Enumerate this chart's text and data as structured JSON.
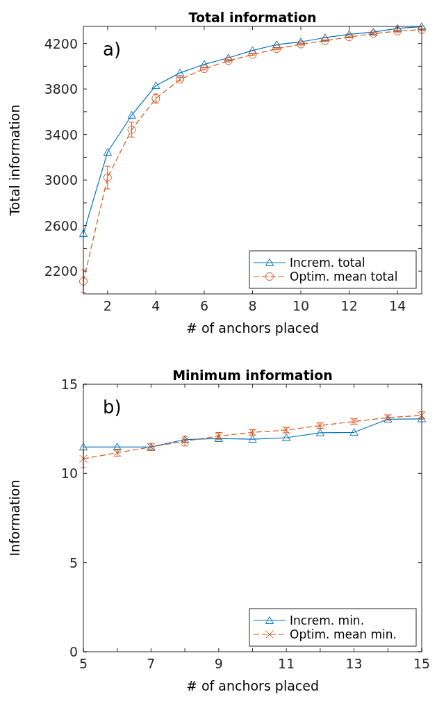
{
  "chart_data": [
    {
      "type": "line",
      "title": "Total information",
      "xlabel": "# of anchors placed",
      "ylabel": "Total information",
      "annotations": [
        "a)"
      ],
      "x": [
        1,
        2,
        3,
        4,
        5,
        6,
        7,
        8,
        9,
        10,
        11,
        12,
        13,
        14,
        15
      ],
      "xlim": [
        1,
        15
      ],
      "xticks": [
        2,
        4,
        6,
        8,
        10,
        12,
        14
      ],
      "ylim": [
        2000,
        4350
      ],
      "yticks": [
        2200,
        {
          "value": 2400,
          "label": null
        },
        2600,
        {
          "value": 2800,
          "label": null
        },
        3000,
        {
          "value": 3200,
          "label": null
        },
        3400,
        {
          "value": 3600,
          "label": null
        },
        3800,
        {
          "value": 4000,
          "label": null
        },
        4200
      ],
      "grid": false,
      "legend": "bottom right",
      "series": [
        {
          "name": "Increm. total",
          "color": "#0072bd",
          "marker": "triangle",
          "line_style": "solid",
          "values": [
            2530,
            3245,
            3570,
            3830,
            3942,
            4017,
            4074,
            4139,
            4190,
            4214,
            4251,
            4281,
            4300,
            4332,
            4348
          ]
        },
        {
          "name": "Optim. mean total",
          "color": "#d95319",
          "marker": "circle",
          "line_style": "dashed",
          "values": [
            2110,
            3022,
            3443,
            3717,
            3885,
            3977,
            4048,
            4102,
            4153,
            4194,
            4224,
            4257,
            4287,
            4308,
            4322
          ],
          "errors": [
            100,
            100,
            65,
            40,
            15,
            10,
            10,
            8,
            8,
            8,
            8,
            8,
            8,
            8,
            8
          ]
        }
      ]
    },
    {
      "type": "line",
      "title": "Minimum information",
      "xlabel": "# of anchors placed",
      "ylabel": "Information",
      "annotations": [
        "b)"
      ],
      "x": [
        5,
        6,
        7,
        8,
        9,
        10,
        11,
        12,
        13,
        14,
        15
      ],
      "xlim": [
        5,
        15
      ],
      "xticks": [
        5,
        {
          "value": 6,
          "label": null
        },
        7,
        {
          "value": 8,
          "label": null
        },
        9,
        {
          "value": 10,
          "label": null
        },
        11,
        {
          "value": 12,
          "label": null
        },
        13,
        {
          "value": 14,
          "label": null
        },
        15
      ],
      "ylim": [
        0,
        15
      ],
      "yticks": [
        0,
        5,
        10,
        15
      ],
      "grid": false,
      "legend": "bottom right",
      "series": [
        {
          "name": "Increm. min.",
          "color": "#0072bd",
          "marker": "triangle",
          "line_style": "solid",
          "values": [
            11.48,
            11.48,
            11.48,
            11.9,
            11.96,
            11.92,
            12.0,
            12.28,
            12.3,
            13.04,
            13.06
          ]
        },
        {
          "name": "Optim. mean min.",
          "color": "#d95319",
          "marker": "cross",
          "line_style": "dashed",
          "values": [
            10.82,
            11.16,
            11.48,
            11.81,
            12.09,
            12.3,
            12.43,
            12.68,
            12.91,
            13.13,
            13.25
          ],
          "errors": [
            0.5,
            0.2,
            0.2,
            0.27,
            0.2,
            0.15,
            0.15,
            0.15,
            0.15,
            0.15,
            0.2
          ]
        }
      ]
    }
  ]
}
